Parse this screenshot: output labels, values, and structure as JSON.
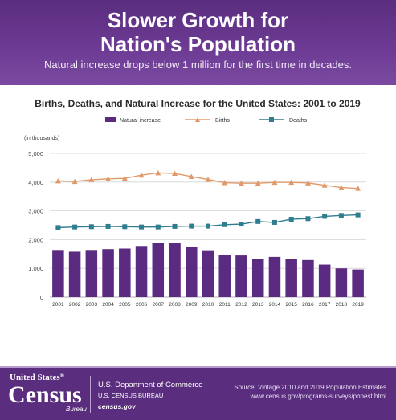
{
  "header": {
    "title_line1": "Slower Growth for",
    "title_line2": "Nation's Population",
    "subtitle": "Natural increase drops below 1 million for the first time in decades."
  },
  "chart_data": {
    "type": "bar",
    "title": "Births, Deaths, and Natural Increase for the United States: 2001 to 2019",
    "units_label": "(in thousands)",
    "categories": [
      "2001",
      "2002",
      "2003",
      "2004",
      "2005",
      "2006",
      "2007",
      "2008",
      "2009",
      "2010",
      "2011",
      "2012",
      "2013",
      "2014",
      "2015",
      "2016",
      "2017",
      "2018",
      "2019"
    ],
    "ylim": [
      0,
      5000
    ],
    "yticks": [
      "0",
      "1,000",
      "2,000",
      "3,000",
      "4,000",
      "5,000"
    ],
    "grid": true,
    "legend_position": "top",
    "series": [
      {
        "name": "Natural increase",
        "kind": "bar",
        "color": "#5b2b82",
        "values": [
          1640,
          1580,
          1640,
          1670,
          1690,
          1780,
          1890,
          1880,
          1760,
          1630,
          1470,
          1450,
          1330,
          1400,
          1320,
          1290,
          1130,
          1000,
          960
        ]
      },
      {
        "name": "Births",
        "kind": "line",
        "color": "#e09a6a",
        "values": [
          4040,
          4020,
          4080,
          4110,
          4130,
          4240,
          4320,
          4300,
          4190,
          4090,
          3980,
          3960,
          3960,
          3990,
          3990,
          3970,
          3890,
          3810,
          3780
        ]
      },
      {
        "name": "Deaths",
        "kind": "line",
        "color": "#2f7d8e",
        "values": [
          2420,
          2440,
          2450,
          2460,
          2450,
          2440,
          2440,
          2460,
          2470,
          2470,
          2520,
          2540,
          2630,
          2600,
          2710,
          2730,
          2810,
          2840,
          2860
        ]
      }
    ]
  },
  "footer": {
    "logo_small": "United States",
    "logo_reg": "®",
    "logo_main": "Census",
    "logo_bureau": "Bureau",
    "department": "U.S. Department of Commerce",
    "bureau": "U.S. CENSUS BUREAU",
    "website": "census.gov",
    "source_line1": "Source: Vintage 2010 and 2019 Population Estimates",
    "source_line2": "www.census.gov/programs-surveys/popest.html"
  }
}
